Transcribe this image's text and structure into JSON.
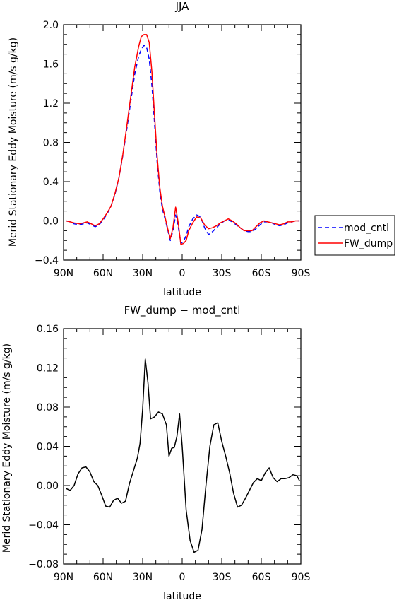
{
  "chart_data": [
    {
      "type": "line",
      "title": "JJA",
      "xlabel": "latitude",
      "ylabel": "Merid Stationary Eddy Moisture (m/s g/kg)",
      "xlim": [
        90,
        -90
      ],
      "ylim": [
        -0.4,
        2.0
      ],
      "xticks": [
        90,
        60,
        30,
        0,
        -30,
        -60,
        -90
      ],
      "xtick_labels": [
        "90N",
        "60N",
        "30N",
        "0",
        "30S",
        "60S",
        "90S"
      ],
      "yticks": [
        -0.4,
        0.0,
        0.4,
        0.8,
        1.2,
        1.6,
        2.0
      ],
      "ytick_labels": [
        "−0.4",
        "0.0",
        "0.4",
        "0.8",
        "1.2",
        "1.6",
        "2.0"
      ],
      "grid": false,
      "legend_position": "right",
      "series": [
        {
          "name": "mod_cntl",
          "color": "#0000ff",
          "style": "dashed",
          "x": [
            88,
            85,
            82,
            78,
            75,
            72,
            69,
            66,
            63,
            60,
            57,
            54,
            51,
            48,
            45,
            42,
            39,
            36,
            33,
            31,
            29,
            27,
            25,
            23,
            21,
            19,
            17,
            15,
            13,
            11,
            9,
            7,
            5,
            3,
            1,
            -1,
            -3,
            -5,
            -8,
            -11,
            -14,
            -17,
            -20,
            -23,
            -26,
            -29,
            -32,
            -35,
            -38,
            -41,
            -44,
            -47,
            -50,
            -53,
            -56,
            -59,
            -62,
            -65,
            -68,
            -71,
            -74,
            -77,
            -80,
            -83,
            -86,
            -89
          ],
          "y": [
            0.0,
            -0.01,
            -0.03,
            -0.04,
            -0.03,
            -0.02,
            -0.04,
            -0.06,
            -0.04,
            0.01,
            0.07,
            0.15,
            0.27,
            0.44,
            0.67,
            0.94,
            1.22,
            1.5,
            1.68,
            1.75,
            1.79,
            1.77,
            1.65,
            1.38,
            1.0,
            0.6,
            0.3,
            0.12,
            0.02,
            -0.09,
            -0.2,
            -0.1,
            0.06,
            -0.06,
            -0.23,
            -0.21,
            -0.15,
            -0.06,
            0.02,
            0.06,
            0.04,
            -0.07,
            -0.14,
            -0.11,
            -0.07,
            -0.03,
            0.0,
            0.01,
            -0.01,
            -0.04,
            -0.07,
            -0.1,
            -0.11,
            -0.11,
            -0.08,
            -0.04,
            -0.01,
            -0.01,
            -0.02,
            -0.04,
            -0.05,
            -0.04,
            -0.02,
            -0.01,
            0.0,
            0.0
          ]
        },
        {
          "name": "FW_dump",
          "color": "#ff0000",
          "style": "solid",
          "x": [
            88,
            85,
            82,
            78,
            75,
            72,
            69,
            66,
            63,
            60,
            57,
            54,
            51,
            48,
            45,
            42,
            39,
            36,
            33,
            31,
            29,
            27,
            25,
            23,
            21,
            19,
            17,
            15,
            13,
            11,
            9,
            7,
            5,
            3,
            1,
            -1,
            -3,
            -5,
            -8,
            -11,
            -14,
            -17,
            -20,
            -23,
            -26,
            -29,
            -32,
            -35,
            -38,
            -41,
            -44,
            -47,
            -50,
            -53,
            -56,
            -59,
            -62,
            -65,
            -68,
            -71,
            -74,
            -77,
            -80,
            -83,
            -86,
            -89
          ],
          "y": [
            0.0,
            -0.01,
            -0.02,
            -0.03,
            -0.02,
            -0.01,
            -0.03,
            -0.05,
            -0.03,
            0.02,
            0.08,
            0.15,
            0.28,
            0.44,
            0.68,
            0.97,
            1.27,
            1.57,
            1.78,
            1.88,
            1.9,
            1.9,
            1.82,
            1.52,
            1.08,
            0.66,
            0.34,
            0.15,
            0.04,
            -0.08,
            -0.18,
            -0.07,
            0.14,
            -0.02,
            -0.24,
            -0.23,
            -0.2,
            -0.1,
            -0.02,
            0.04,
            0.03,
            -0.04,
            -0.08,
            -0.07,
            -0.05,
            -0.02,
            0.0,
            0.02,
            0.0,
            -0.03,
            -0.07,
            -0.1,
            -0.1,
            -0.1,
            -0.06,
            -0.02,
            0.0,
            -0.01,
            -0.02,
            -0.03,
            -0.04,
            -0.03,
            -0.01,
            -0.01,
            0.0,
            0.0
          ]
        }
      ]
    },
    {
      "type": "line",
      "title": "FW_dump − mod_cntl",
      "xlabel": "latitude",
      "ylabel": "Merid Stationary Eddy Moisture (m/s g/kg)",
      "xlim": [
        90,
        -90
      ],
      "ylim": [
        -0.08,
        0.16
      ],
      "xticks": [
        90,
        60,
        30,
        0,
        -30,
        -60,
        -90
      ],
      "xtick_labels": [
        "90N",
        "60N",
        "30N",
        "0",
        "30S",
        "60S",
        "90S"
      ],
      "yticks": [
        -0.08,
        -0.04,
        0.0,
        0.04,
        0.08,
        0.12,
        0.16
      ],
      "ytick_labels": [
        "−0.08",
        "−0.04",
        "0.00",
        "0.04",
        "0.08",
        "0.12",
        "0.16"
      ],
      "grid": false,
      "series": [
        {
          "color": "#000000",
          "style": "solid",
          "x": [
            88,
            85,
            82,
            79,
            76,
            73,
            70,
            67,
            64,
            61,
            58,
            55,
            52,
            49,
            46,
            43,
            40,
            37,
            34,
            32,
            30,
            28,
            26,
            24,
            21,
            18,
            15,
            12,
            10,
            8,
            6,
            4,
            2,
            0,
            -3,
            -6,
            -9,
            -12,
            -15,
            -18,
            -21,
            -24,
            -27,
            -30,
            -33,
            -36,
            -39,
            -42,
            -45,
            -48,
            -51,
            -54,
            -57,
            -60,
            -63,
            -66,
            -69,
            -72,
            -75,
            -78,
            -81,
            -84,
            -87,
            -89
          ],
          "y": [
            -0.003,
            -0.005,
            0.0,
            0.012,
            0.018,
            0.019,
            0.014,
            0.004,
            0.0,
            -0.01,
            -0.021,
            -0.022,
            -0.015,
            -0.013,
            -0.018,
            -0.016,
            0.002,
            0.015,
            0.028,
            0.043,
            0.078,
            0.129,
            0.105,
            0.068,
            0.07,
            0.075,
            0.073,
            0.062,
            0.03,
            0.038,
            0.039,
            0.05,
            0.073,
            0.04,
            -0.025,
            -0.056,
            -0.068,
            -0.066,
            -0.045,
            0.0,
            0.04,
            0.062,
            0.064,
            0.045,
            0.03,
            0.013,
            -0.008,
            -0.022,
            -0.02,
            -0.013,
            -0.005,
            0.003,
            0.007,
            0.005,
            0.013,
            0.018,
            0.008,
            0.004,
            0.007,
            0.007,
            0.008,
            0.011,
            0.01,
            0.005
          ]
        }
      ]
    }
  ]
}
